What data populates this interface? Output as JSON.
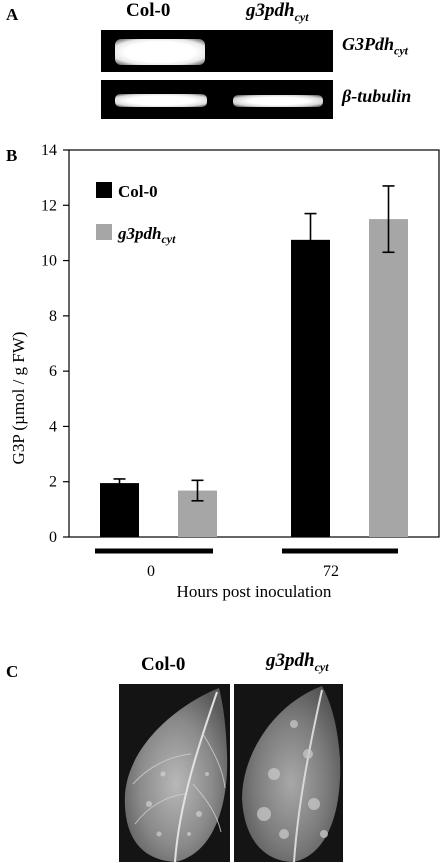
{
  "panel_a": {
    "letter": "A",
    "lanes": [
      "Col-0",
      "g3pdh",
      "cyt"
    ],
    "genes": [
      {
        "main": "G3Pdh",
        "sub": "cyt"
      },
      {
        "main": "β-tubulin",
        "sub": ""
      }
    ],
    "band_intensity": {
      "g3pdh_row": {
        "col0": "strong",
        "mutant": "none"
      },
      "tubulin_row": {
        "col0": "strong",
        "mutant": "strong"
      }
    }
  },
  "panel_b": {
    "letter": "B",
    "legend": [
      {
        "main": "Col-0",
        "sub": "",
        "color": "#000000"
      },
      {
        "main": "g3pdh",
        "sub": "cyt",
        "color": "#a6a6a6"
      }
    ]
  },
  "chart_data": {
    "type": "bar",
    "categories": [
      "0",
      "72"
    ],
    "series": [
      {
        "name": "Col-0",
        "values": [
          1.95,
          10.75
        ],
        "errors": [
          0.15,
          0.95
        ],
        "color": "#000000"
      },
      {
        "name": "g3pdh_cyt",
        "values": [
          1.68,
          11.5
        ],
        "errors": [
          0.37,
          1.2
        ],
        "color": "#a6a6a6"
      }
    ],
    "ylabel": "G3P (µmol / g FW)",
    "xlabel": "Hours post inoculation",
    "ylim": [
      0,
      14
    ],
    "yticks": [
      0,
      2,
      4,
      6,
      8,
      10,
      12,
      14
    ],
    "grid": false,
    "legend_position": "top-left"
  },
  "panel_c": {
    "letter": "C",
    "labels": [
      {
        "main": "Col-0",
        "sub": ""
      },
      {
        "main": "g3pdh",
        "sub": "cyt"
      }
    ]
  }
}
